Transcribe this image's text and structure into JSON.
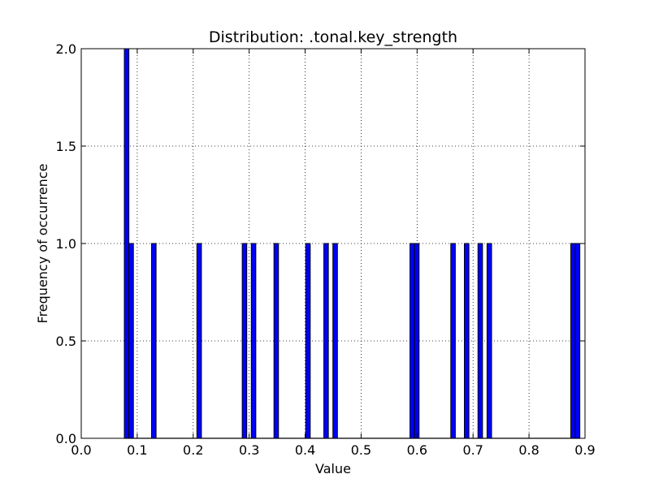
{
  "chart_data": {
    "type": "bar",
    "title": "Distribution: .tonal.key_strength",
    "xlabel": "Value",
    "ylabel": "Frequency of occurrence",
    "xlim": [
      0.0,
      0.9
    ],
    "ylim": [
      0.0,
      2.0
    ],
    "xticks": [
      0.0,
      0.1,
      0.2,
      0.3,
      0.4,
      0.5,
      0.6,
      0.7,
      0.8,
      0.9
    ],
    "xtick_labels": [
      "0.0",
      "0.1",
      "0.2",
      "0.3",
      "0.4",
      "0.5",
      "0.6",
      "0.7",
      "0.8",
      "0.9"
    ],
    "yticks": [
      0.0,
      0.5,
      1.0,
      1.5,
      2.0
    ],
    "ytick_labels": [
      "0.0",
      "0.5",
      "1.0",
      "1.5",
      "2.0"
    ],
    "grid": true,
    "bar_color": "#0000ff",
    "bin_width": 0.0081,
    "bins": [
      {
        "x0": 0.077,
        "count": 2
      },
      {
        "x0": 0.0851,
        "count": 1
      },
      {
        "x0": 0.1256,
        "count": 1
      },
      {
        "x0": 0.2066,
        "count": 1
      },
      {
        "x0": 0.2876,
        "count": 1
      },
      {
        "x0": 0.3038,
        "count": 1
      },
      {
        "x0": 0.3443,
        "count": 1
      },
      {
        "x0": 0.401,
        "count": 1
      },
      {
        "x0": 0.4334,
        "count": 1
      },
      {
        "x0": 0.4496,
        "count": 1
      },
      {
        "x0": 0.5873,
        "count": 1
      },
      {
        "x0": 0.5954,
        "count": 1
      },
      {
        "x0": 0.6602,
        "count": 1
      },
      {
        "x0": 0.6845,
        "count": 1
      },
      {
        "x0": 0.7088,
        "count": 1
      },
      {
        "x0": 0.725,
        "count": 1
      },
      {
        "x0": 0.8746,
        "count": 1
      },
      {
        "x0": 0.8827,
        "count": 1
      }
    ]
  }
}
